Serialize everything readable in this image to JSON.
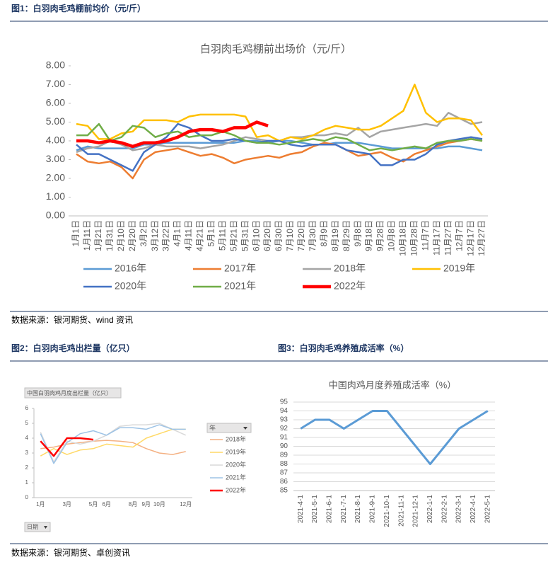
{
  "captions": [
    "图1：白羽肉毛鸡棚前均价（元/斤）",
    "图2：白羽肉毛鸡出栏量（亿只）",
    "图3：白羽肉毛鸡养殖成活率（%）"
  ],
  "sources": [
    "数据来源：银河期货、wind 资讯",
    "数据来源：银河期货、卓创资讯"
  ],
  "chart_data": [
    {
      "type": "line",
      "title": "白羽肉毛鸡棚前出场价（元/斤）",
      "legend": "bottom",
      "categories": [
        "1月1日",
        "1月11日",
        "1月21日",
        "1月31日",
        "2月10日",
        "2月20日",
        "3月2日",
        "3月12日",
        "3月22日",
        "4月1日",
        "4月11日",
        "4月21日",
        "5月1日",
        "5月11日",
        "5月21日",
        "5月31日",
        "6月10日",
        "6月20日",
        "6月30日",
        "7月10日",
        "7月20日",
        "7月30日",
        "8月9日",
        "8月19日",
        "8月29日",
        "9月8日",
        "9月18日",
        "9月28日",
        "10月8日",
        "10月18日",
        "10月28日",
        "11月7日",
        "11月17日",
        "11月27日",
        "12月7日",
        "12月17日",
        "12月27日"
      ],
      "ylim": [
        0,
        8
      ],
      "yticks": [
        {
          "value": 0,
          "label": "0.00"
        },
        {
          "value": 1,
          "label": "1.00"
        },
        {
          "value": 2,
          "label": "2.00"
        },
        {
          "value": 3,
          "label": "3.00"
        },
        {
          "value": 4,
          "label": "4.00"
        },
        {
          "value": 5,
          "label": "5.00"
        },
        {
          "value": 6,
          "label": "6.00"
        },
        {
          "value": 7,
          "label": "7.00"
        },
        {
          "value": 8,
          "label": "8.00"
        }
      ],
      "series": [
        {
          "name": "2016年",
          "color": "#5b9bd5",
          "width": 2.5,
          "values": [
            3.5,
            3.7,
            3.6,
            3.6,
            3.6,
            3.6,
            3.8,
            3.8,
            3.9,
            3.9,
            3.9,
            3.9,
            3.9,
            3.9,
            3.9,
            4.0,
            4.0,
            3.9,
            4.0,
            4.0,
            3.9,
            3.8,
            3.8,
            3.9,
            3.9,
            3.9,
            3.8,
            3.7,
            3.6,
            3.6,
            3.6,
            3.6,
            3.6,
            3.7,
            3.7,
            3.6,
            3.5
          ]
        },
        {
          "name": "2017年",
          "color": "#ed7d31",
          "width": 2.5,
          "values": [
            3.3,
            2.9,
            2.8,
            2.9,
            2.6,
            2.0,
            3.0,
            3.4,
            3.5,
            3.6,
            3.4,
            3.2,
            3.3,
            3.1,
            2.8,
            3.0,
            3.1,
            3.2,
            3.1,
            3.3,
            3.4,
            3.7,
            3.9,
            3.8,
            3.5,
            3.2,
            3.3,
            3.4,
            3.1,
            2.9,
            3.3,
            3.5,
            3.7,
            3.9,
            4.0,
            4.1,
            4.0
          ]
        },
        {
          "name": "2018年",
          "color": "#a5a5a5",
          "width": 2.5,
          "values": [
            3.4,
            3.6,
            3.7,
            4.0,
            3.8,
            3.5,
            3.6,
            3.8,
            3.7,
            3.7,
            3.7,
            3.6,
            3.7,
            3.8,
            4.0,
            4.2,
            4.1,
            4.0,
            4.0,
            4.2,
            4.2,
            4.3,
            4.3,
            4.4,
            4.3,
            4.7,
            4.2,
            4.5,
            4.6,
            4.7,
            4.8,
            4.9,
            4.8,
            5.5,
            5.2,
            4.9,
            5.0
          ]
        },
        {
          "name": "2019年",
          "color": "#ffc000",
          "width": 2.5,
          "values": [
            4.9,
            4.8,
            4.1,
            4.1,
            4.4,
            4.5,
            5.1,
            5.1,
            5.1,
            5.0,
            5.3,
            5.4,
            5.4,
            5.4,
            5.4,
            5.3,
            4.2,
            4.3,
            4.0,
            4.2,
            4.1,
            4.3,
            4.6,
            4.8,
            4.7,
            4.6,
            4.6,
            4.8,
            5.2,
            5.6,
            7.0,
            5.5,
            5.0,
            5.2,
            5.2,
            5.1,
            4.3
          ]
        },
        {
          "name": "2020年",
          "color": "#4472c4",
          "width": 2.5,
          "values": [
            3.8,
            3.3,
            3.3,
            3.0,
            2.7,
            2.4,
            3.4,
            3.8,
            4.2,
            4.9,
            4.7,
            4.3,
            4.0,
            4.0,
            4.1,
            4.0,
            3.9,
            4.0,
            4.0,
            3.8,
            3.7,
            3.8,
            3.8,
            3.8,
            3.5,
            3.4,
            3.3,
            2.7,
            2.7,
            3.0,
            3.0,
            3.3,
            3.8,
            4.0,
            4.1,
            4.2,
            4.1
          ]
        },
        {
          "name": "2021年",
          "color": "#70ad47",
          "width": 2.5,
          "values": [
            4.3,
            4.3,
            4.9,
            4.0,
            4.2,
            4.8,
            4.7,
            4.2,
            4.4,
            4.5,
            4.2,
            4.3,
            4.3,
            4.5,
            4.3,
            4.0,
            3.9,
            3.9,
            3.8,
            3.9,
            4.0,
            4.1,
            4.0,
            4.2,
            4.1,
            3.8,
            3.5,
            3.6,
            3.5,
            3.6,
            3.7,
            3.6,
            3.9,
            4.0,
            4.0,
            4.1,
            4.0
          ]
        },
        {
          "name": "2022年",
          "color": "#ff0000",
          "width": 4.5,
          "values": [
            4.0,
            4.0,
            3.9,
            4.0,
            3.9,
            3.7,
            3.9,
            3.9,
            4.0,
            4.2,
            4.5,
            4.6,
            4.6,
            4.5,
            4.7,
            4.7,
            5.0,
            4.8,
            null,
            null,
            null,
            null,
            null,
            null,
            null,
            null,
            null,
            null,
            null,
            null,
            null,
            null,
            null,
            null,
            null,
            null,
            null
          ]
        }
      ]
    },
    {
      "type": "line",
      "title": "中国白羽肉鸡月度出栏量（亿只）",
      "legend": "right",
      "legend_title": "年",
      "x_button": "日期",
      "categories": [
        "1月",
        null,
        "3月",
        null,
        "5月",
        "6月",
        null,
        "8月",
        "9月",
        "10月",
        null,
        "12月"
      ],
      "ylim": [
        0,
        6
      ],
      "yticks": [
        0,
        1,
        2,
        3,
        4,
        5,
        6
      ],
      "series": [
        {
          "name": "2018年",
          "color": "#f4b183",
          "width": 1.5,
          "values": [
            3.3,
            3.4,
            3.6,
            3.7,
            3.8,
            3.85,
            3.8,
            3.7,
            3.3,
            3.0,
            2.9,
            3.1
          ]
        },
        {
          "name": "2019年",
          "color": "#ffd966",
          "width": 1.5,
          "values": [
            2.8,
            3.3,
            2.9,
            3.2,
            3.3,
            3.6,
            3.5,
            3.4,
            4.0,
            4.3,
            4.6,
            4.6
          ]
        },
        {
          "name": "2020年",
          "color": "#d9d9d9",
          "width": 1.5,
          "values": [
            4.4,
            2.4,
            3.8,
            3.6,
            3.8,
            4.2,
            4.8,
            4.9,
            4.9,
            5.0,
            4.6,
            4.2
          ]
        },
        {
          "name": "2021年",
          "color": "#9dc3e6",
          "width": 1.5,
          "values": [
            4.3,
            2.3,
            3.7,
            4.3,
            4.5,
            4.2,
            4.7,
            4.7,
            4.6,
            4.9,
            4.6,
            4.6
          ]
        },
        {
          "name": "2022年",
          "color": "#ff0000",
          "width": 2.5,
          "values": [
            3.8,
            2.8,
            4.0,
            4.0,
            3.9,
            null,
            null,
            null,
            null,
            null,
            null,
            null
          ]
        }
      ]
    },
    {
      "type": "line",
      "title": "中国肉鸡月度养殖成活率（%）",
      "categories": [
        "2021-4-1",
        "2021-5-1",
        "2021-6-1",
        "2021-7-1",
        "2021-8-1",
        "2021-9-1",
        "2021-10-1",
        "2021-11-1",
        "2021-12-1",
        "2022-1-1",
        "2022-2-1",
        "2022-3-1",
        "2022-4-1",
        "2022-5-1"
      ],
      "ylim": [
        85,
        95
      ],
      "yticks": [
        85,
        86,
        87,
        88,
        89,
        90,
        91,
        92,
        93,
        94,
        95
      ],
      "series": [
        {
          "name": null,
          "color": "#5b9bd5",
          "width": 3,
          "values": [
            92,
            93,
            93,
            92,
            93,
            94,
            94,
            92,
            90,
            88,
            90,
            92,
            93,
            94
          ]
        }
      ]
    }
  ]
}
